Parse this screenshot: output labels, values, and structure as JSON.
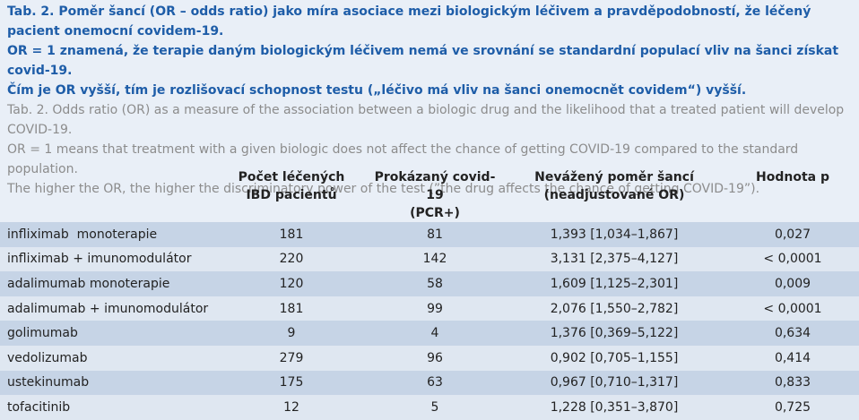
{
  "caption": {
    "cz": [
      "Tab. 2. Poměr šancí (OR – odds ratio) jako míra asociace mezi biologickým léčivem a pravděpodobností, že léčený pacient onemocní covidem-19.",
      "OR = 1 znamená, že terapie daným biologickým léčivem nemá ve srovnání se standardní populací vliv na šanci získat covid-19.",
      "Čím je OR vyšší, tím je rozlišovací schopnost testu („léčivo má vliv na šanci onemocnět covidem“) vyšší."
    ],
    "en": [
      "Tab. 2. Odds ratio (OR) as a measure of the association between a biologic drug and the likelihood that a treated patient will develop COVID-19.",
      "OR = 1 means that treatment with a given biologic does not affect the chance of getting COVID-19 compared to the standard population.",
      "The higher the OR, the higher the discriminatory power of the test (”the drug affects the chance of getting COVID-19”)."
    ]
  },
  "table": {
    "header": [
      [
        "Počet léčených",
        "IBD pacientů"
      ],
      [
        "Prokázaný covid-19",
        "(PCR+)"
      ],
      [
        "Nevážený poměr šancí",
        "(neadjustované OR)"
      ],
      [
        "Hodnota p"
      ]
    ],
    "rows": [
      [
        "infliximab  monoterapie",
        "181",
        "81",
        "1,393 [1,034–1,867]",
        "0,027"
      ],
      [
        "infliximab + imunomodulátor",
        "220",
        "142",
        "3,131 [2,375–4,127]",
        "< 0,0001"
      ],
      [
        "adalimumab monoterapie",
        "120",
        "58",
        "1,609 [1,125–2,301]",
        "0,009"
      ],
      [
        "adalimumab + imunomodulátor",
        "181",
        "99",
        "2,076 [1,550–2,782]",
        "< 0,0001"
      ],
      [
        "golimumab",
        "9",
        "4",
        "1,376 [0,369–5,122]",
        "0,634"
      ],
      [
        "vedolizumab",
        "279",
        "96",
        "0,902 [0,705–1,155]",
        "0,414"
      ],
      [
        "ustekinumab",
        "175",
        "63",
        "0,967 [0,710–1,317]",
        "0,833"
      ],
      [
        "tofacitinib",
        "12",
        "5",
        "1,228 [0,351–3,870]",
        "0,725"
      ]
    ]
  }
}
